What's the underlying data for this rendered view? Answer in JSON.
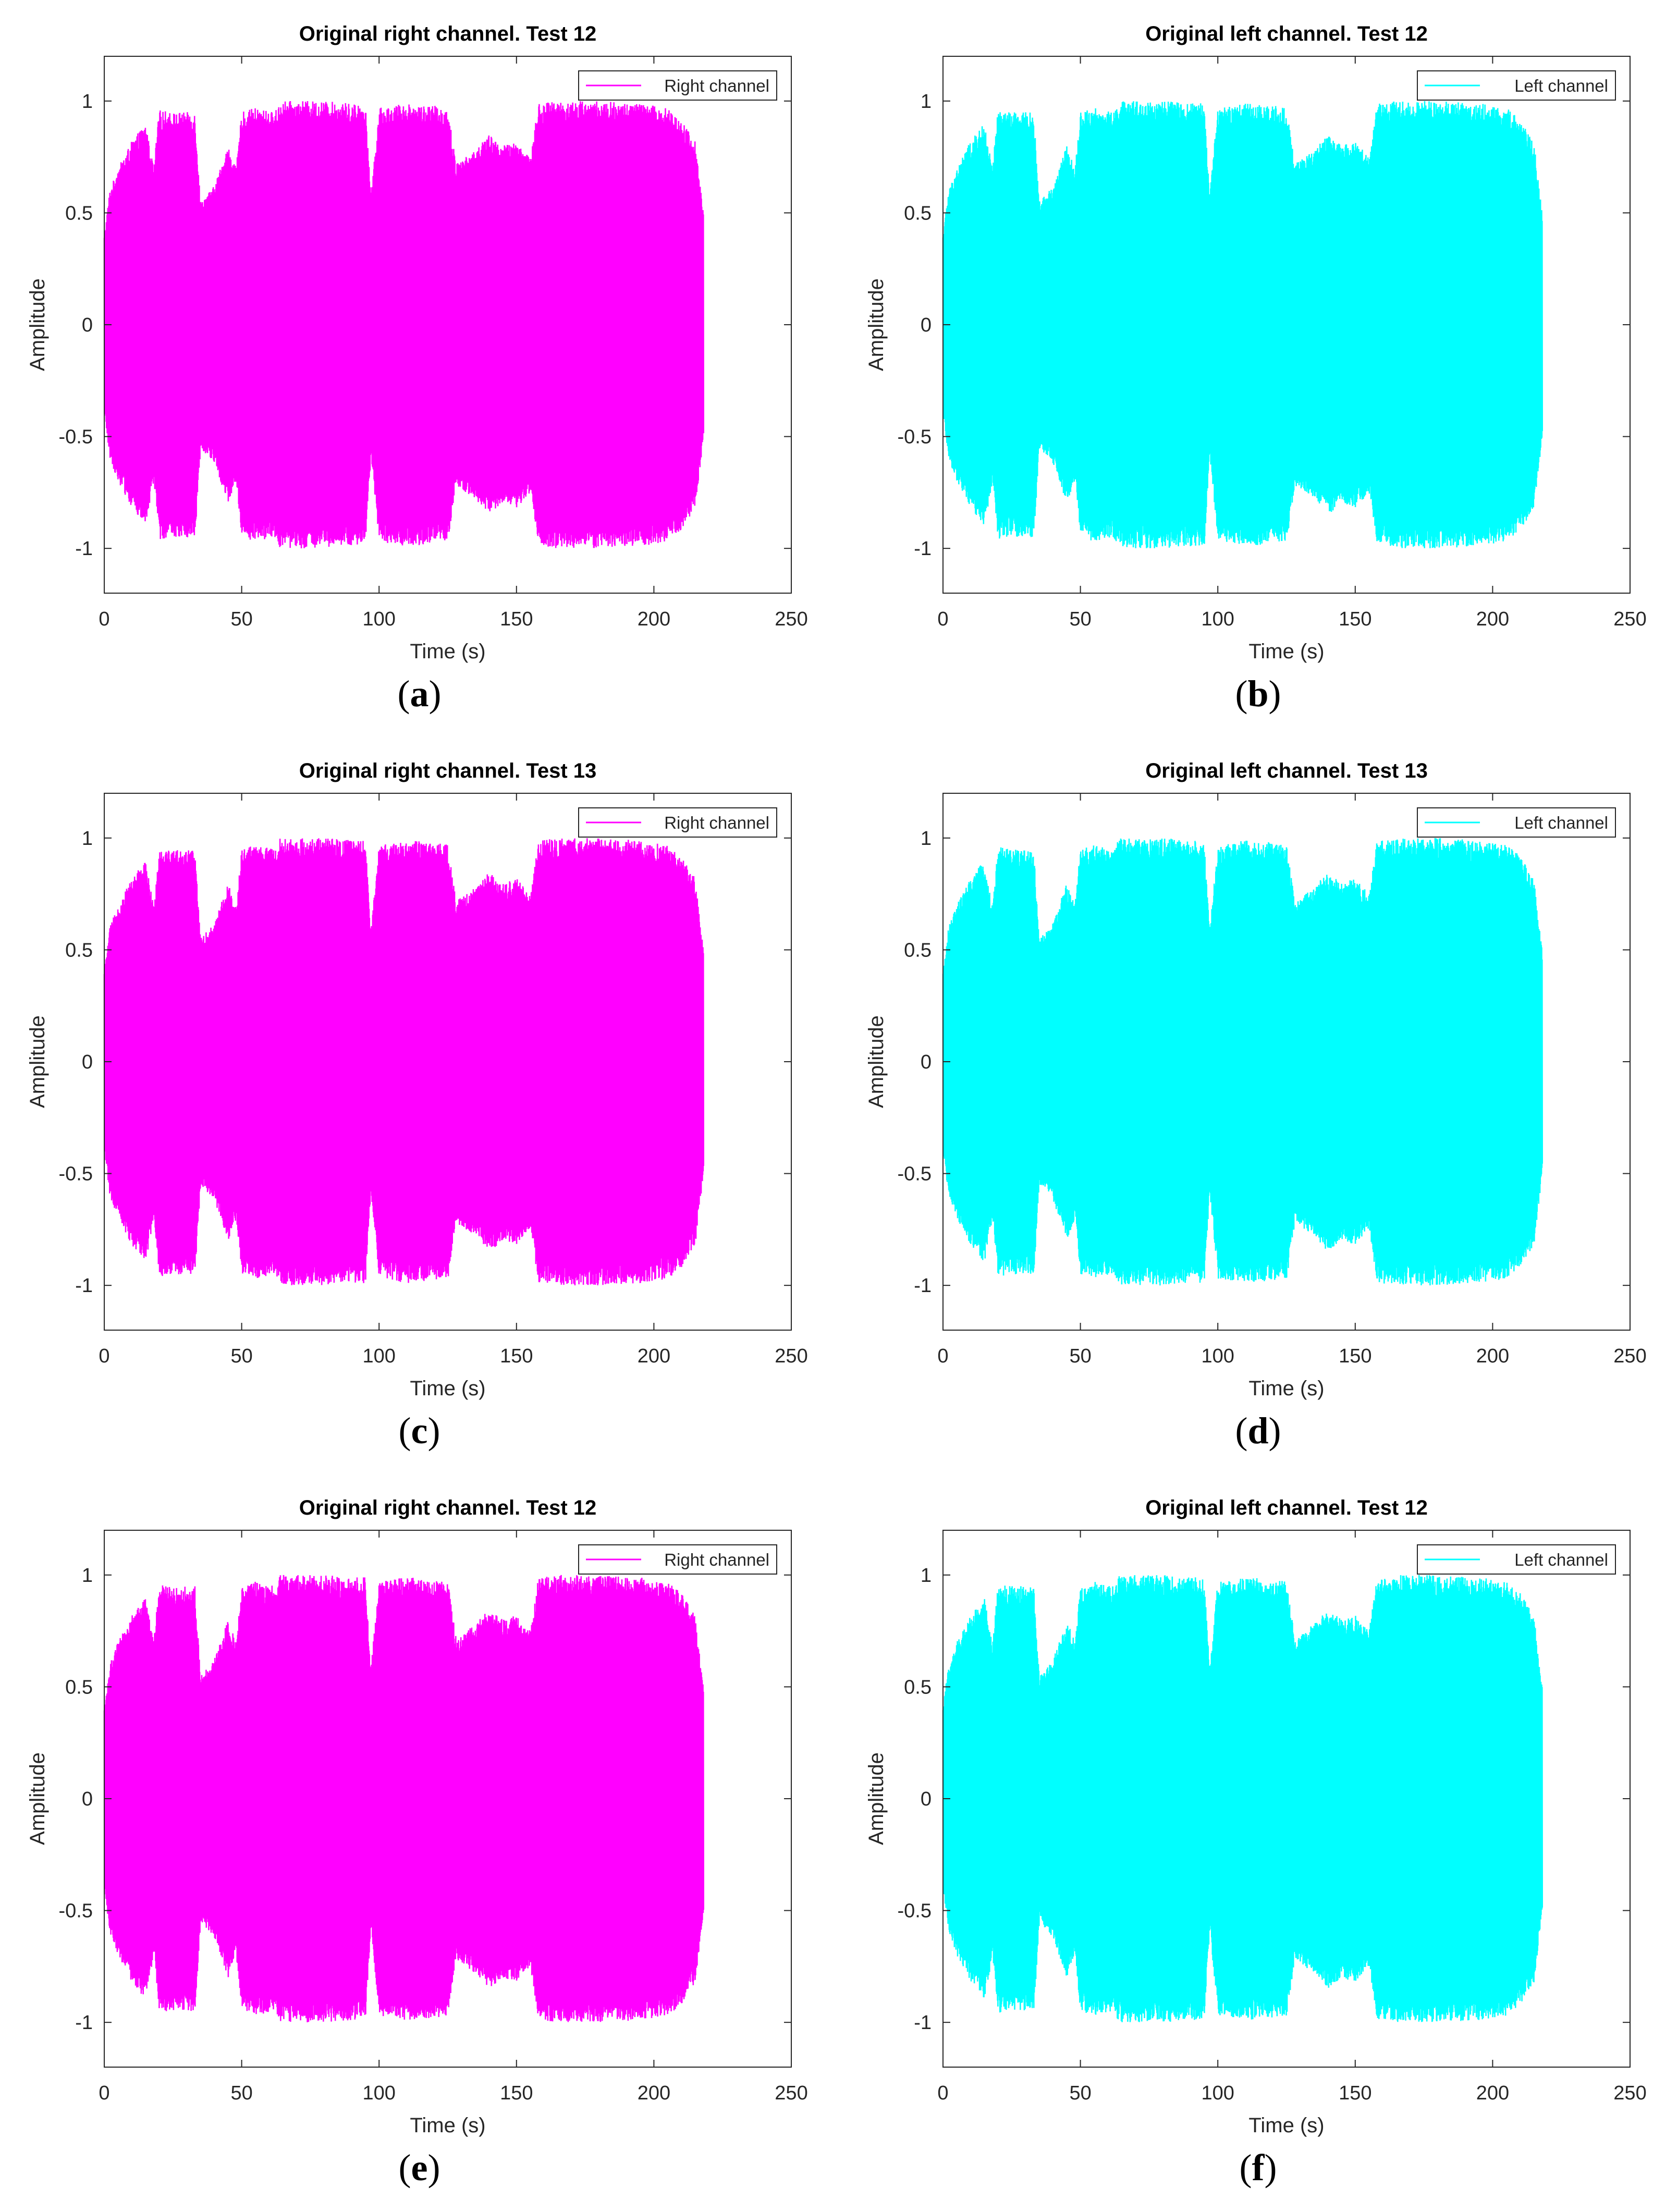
{
  "figure": {
    "panels": [
      {
        "label": "a",
        "color": "#ff00ff",
        "legend": "Right channel",
        "title": "Original right channel. Test 12"
      },
      {
        "label": "b",
        "color": "#00ffff",
        "legend": "Left channel",
        "title": "Original left channel. Test 12"
      },
      {
        "label": "c",
        "color": "#ff00ff",
        "legend": "Right channel",
        "title": "Original right channel. Test 13"
      },
      {
        "label": "d",
        "color": "#00ffff",
        "legend": "Left channel",
        "title": "Original left channel. Test 13"
      },
      {
        "label": "e",
        "color": "#ff00ff",
        "legend": "Right channel",
        "title": "Original right channel. Test 12"
      },
      {
        "label": "f",
        "color": "#00ffff",
        "legend": "Left channel",
        "title": "Original left channel. Test 12"
      }
    ]
  },
  "chart_data": [
    {
      "type": "area",
      "title": "Original right channel. Test 12",
      "xlabel": "Time (s)",
      "ylabel": "Amplitude",
      "xlim": [
        0,
        250
      ],
      "ylim": [
        -1.2,
        1.2
      ],
      "xticks": [
        0,
        50,
        100,
        150,
        200,
        250
      ],
      "yticks": [
        1,
        0.5,
        0,
        -0.5,
        -1
      ],
      "xtick_labels": [
        "0",
        "50",
        "100",
        "150",
        "200",
        "250"
      ],
      "ytick_labels": [
        "1",
        "0.5",
        "0",
        "-0.5",
        "-1"
      ],
      "legend": "Right channel",
      "legend_position": "top-right",
      "series": [
        {
          "name": "Right channel",
          "x": [
            0,
            2,
            5,
            10,
            15,
            18,
            20,
            25,
            33,
            35,
            40,
            45,
            48,
            50,
            55,
            62,
            64,
            70,
            80,
            90,
            95,
            97,
            100,
            110,
            120,
            125,
            128,
            135,
            140,
            145,
            150,
            155,
            158,
            165,
            180,
            195,
            205,
            210,
            215,
            218
          ],
          "envelope": [
            0.4,
            0.6,
            0.7,
            0.82,
            0.9,
            0.7,
            0.96,
            0.95,
            0.95,
            0.55,
            0.62,
            0.8,
            0.7,
            0.95,
            0.97,
            0.95,
            1.0,
            1.0,
            1.0,
            0.99,
            0.99,
            0.58,
            0.97,
            0.99,
            0.98,
            0.97,
            0.72,
            0.78,
            0.85,
            0.8,
            0.82,
            0.75,
            0.99,
            1.0,
            1.0,
            0.99,
            0.97,
            0.92,
            0.82,
            0.5
          ]
        }
      ]
    },
    {
      "type": "area",
      "title": "Original left channel. Test 12",
      "xlabel": "Time (s)",
      "ylabel": "Amplitude",
      "xlim": [
        0,
        250
      ],
      "ylim": [
        -1.2,
        1.2
      ],
      "xticks": [
        0,
        50,
        100,
        150,
        200,
        250
      ],
      "yticks": [
        1,
        0.5,
        0,
        -0.5,
        -1
      ],
      "xtick_labels": [
        "0",
        "50",
        "100",
        "150",
        "200",
        "250"
      ],
      "ytick_labels": [
        "1",
        "0.5",
        "0",
        "-0.5",
        "-1"
      ],
      "legend": "Left channel",
      "legend_position": "top-right",
      "series": [
        {
          "name": "Left channel",
          "x": [
            0,
            2,
            5,
            10,
            15,
            18,
            20,
            25,
            33,
            35,
            40,
            45,
            48,
            50,
            55,
            62,
            64,
            70,
            80,
            90,
            95,
            97,
            100,
            110,
            120,
            125,
            128,
            135,
            140,
            145,
            150,
            155,
            158,
            165,
            180,
            195,
            205,
            210,
            215,
            218
          ],
          "envelope": [
            0.4,
            0.6,
            0.7,
            0.82,
            0.9,
            0.7,
            0.96,
            0.95,
            0.95,
            0.55,
            0.62,
            0.8,
            0.7,
            0.95,
            0.97,
            0.95,
            1.0,
            1.0,
            1.0,
            0.99,
            0.99,
            0.58,
            0.97,
            0.99,
            0.98,
            0.97,
            0.72,
            0.78,
            0.85,
            0.8,
            0.82,
            0.75,
            0.99,
            1.0,
            1.0,
            0.99,
            0.97,
            0.92,
            0.82,
            0.5
          ]
        }
      ]
    },
    {
      "type": "area",
      "title": "Original right channel. Test 13",
      "xlabel": "Time (s)",
      "ylabel": "Amplitude",
      "xlim": [
        0,
        250
      ],
      "ylim": [
        -1.2,
        1.2
      ],
      "xticks": [
        0,
        50,
        100,
        150,
        200,
        250
      ],
      "yticks": [
        1,
        0.5,
        0,
        -0.5,
        -1
      ],
      "xtick_labels": [
        "0",
        "50",
        "100",
        "150",
        "200",
        "250"
      ],
      "ytick_labels": [
        "1",
        "0.5",
        "0",
        "-0.5",
        "-1"
      ],
      "legend": "Right channel",
      "legend_position": "top-right",
      "series": [
        {
          "name": "Right channel",
          "x": [
            0,
            2,
            5,
            10,
            15,
            18,
            20,
            25,
            33,
            35,
            40,
            45,
            48,
            50,
            55,
            62,
            64,
            70,
            80,
            90,
            95,
            97,
            100,
            110,
            120,
            125,
            128,
            135,
            140,
            145,
            150,
            155,
            158,
            165,
            180,
            195,
            205,
            210,
            215,
            218
          ],
          "envelope": [
            0.4,
            0.6,
            0.7,
            0.82,
            0.9,
            0.7,
            0.96,
            0.95,
            0.95,
            0.55,
            0.62,
            0.8,
            0.7,
            0.95,
            0.97,
            0.95,
            1.0,
            1.0,
            1.0,
            0.99,
            0.99,
            0.58,
            0.97,
            0.99,
            0.98,
            0.97,
            0.72,
            0.78,
            0.85,
            0.8,
            0.82,
            0.75,
            0.99,
            1.0,
            1.0,
            0.99,
            0.97,
            0.92,
            0.82,
            0.5
          ]
        }
      ]
    },
    {
      "type": "area",
      "title": "Original left channel. Test 13",
      "xlabel": "Time (s)",
      "ylabel": "Amplitude",
      "xlim": [
        0,
        250
      ],
      "ylim": [
        -1.2,
        1.2
      ],
      "xticks": [
        0,
        50,
        100,
        150,
        200,
        250
      ],
      "yticks": [
        1,
        0.5,
        0,
        -0.5,
        -1
      ],
      "xtick_labels": [
        "0",
        "50",
        "100",
        "150",
        "200",
        "250"
      ],
      "ytick_labels": [
        "1",
        "0.5",
        "0",
        "-0.5",
        "-1"
      ],
      "legend": "Left channel",
      "legend_position": "top-right",
      "series": [
        {
          "name": "Left channel",
          "x": [
            0,
            2,
            5,
            10,
            15,
            18,
            20,
            25,
            33,
            35,
            40,
            45,
            48,
            50,
            55,
            62,
            64,
            70,
            80,
            90,
            95,
            97,
            100,
            110,
            120,
            125,
            128,
            135,
            140,
            145,
            150,
            155,
            158,
            165,
            180,
            195,
            205,
            210,
            215,
            218
          ],
          "envelope": [
            0.4,
            0.6,
            0.7,
            0.82,
            0.9,
            0.7,
            0.96,
            0.95,
            0.95,
            0.55,
            0.62,
            0.8,
            0.7,
            0.95,
            0.97,
            0.95,
            1.0,
            1.0,
            1.0,
            0.99,
            0.99,
            0.58,
            0.97,
            0.99,
            0.98,
            0.97,
            0.72,
            0.78,
            0.85,
            0.8,
            0.82,
            0.75,
            0.99,
            1.0,
            1.0,
            0.99,
            0.97,
            0.92,
            0.82,
            0.5
          ]
        }
      ]
    },
    {
      "type": "area",
      "title": "Original right channel. Test 12",
      "xlabel": "Time (s)",
      "ylabel": "Amplitude",
      "xlim": [
        0,
        250
      ],
      "ylim": [
        -1.2,
        1.2
      ],
      "xticks": [
        0,
        50,
        100,
        150,
        200,
        250
      ],
      "yticks": [
        1,
        0.5,
        0,
        -0.5,
        -1
      ],
      "xtick_labels": [
        "0",
        "50",
        "100",
        "150",
        "200",
        "250"
      ],
      "ytick_labels": [
        "1",
        "0.5",
        "0",
        "-0.5",
        "-1"
      ],
      "legend": "Right channel",
      "legend_position": "top-right",
      "series": [
        {
          "name": "Right channel",
          "x": [
            0,
            2,
            5,
            10,
            15,
            18,
            20,
            25,
            33,
            35,
            40,
            45,
            48,
            50,
            55,
            62,
            64,
            70,
            80,
            90,
            95,
            97,
            100,
            110,
            120,
            125,
            128,
            135,
            140,
            145,
            150,
            155,
            158,
            165,
            180,
            195,
            205,
            210,
            215,
            218
          ],
          "envelope": [
            0.4,
            0.6,
            0.7,
            0.82,
            0.9,
            0.7,
            0.96,
            0.95,
            0.95,
            0.55,
            0.62,
            0.8,
            0.7,
            0.95,
            0.97,
            0.95,
            1.0,
            1.0,
            1.0,
            0.99,
            0.99,
            0.58,
            0.97,
            0.99,
            0.98,
            0.97,
            0.72,
            0.78,
            0.85,
            0.8,
            0.82,
            0.75,
            0.99,
            1.0,
            1.0,
            0.99,
            0.97,
            0.92,
            0.82,
            0.5
          ]
        }
      ]
    },
    {
      "type": "area",
      "title": "Original left channel. Test 12",
      "xlabel": "Time (s)",
      "ylabel": "Amplitude",
      "xlim": [
        0,
        250
      ],
      "ylim": [
        -1.2,
        1.2
      ],
      "xticks": [
        0,
        50,
        100,
        150,
        200,
        250
      ],
      "yticks": [
        1,
        0.5,
        0,
        -0.5,
        -1
      ],
      "xtick_labels": [
        "0",
        "50",
        "100",
        "150",
        "200",
        "250"
      ],
      "ytick_labels": [
        "1",
        "0.5",
        "0",
        "-0.5",
        "-1"
      ],
      "legend": "Left channel",
      "legend_position": "top-right",
      "series": [
        {
          "name": "Left channel",
          "x": [
            0,
            2,
            5,
            10,
            15,
            18,
            20,
            25,
            33,
            35,
            40,
            45,
            48,
            50,
            55,
            62,
            64,
            70,
            80,
            90,
            95,
            97,
            100,
            110,
            120,
            125,
            128,
            135,
            140,
            145,
            150,
            155,
            158,
            165,
            180,
            195,
            205,
            210,
            215,
            218
          ],
          "envelope": [
            0.4,
            0.6,
            0.7,
            0.82,
            0.9,
            0.7,
            0.96,
            0.95,
            0.95,
            0.55,
            0.62,
            0.8,
            0.7,
            0.95,
            0.97,
            0.95,
            1.0,
            1.0,
            1.0,
            0.99,
            0.99,
            0.58,
            0.97,
            0.99,
            0.98,
            0.97,
            0.72,
            0.78,
            0.85,
            0.8,
            0.82,
            0.75,
            0.99,
            1.0,
            1.0,
            0.99,
            0.97,
            0.92,
            0.82,
            0.5
          ]
        }
      ]
    }
  ]
}
